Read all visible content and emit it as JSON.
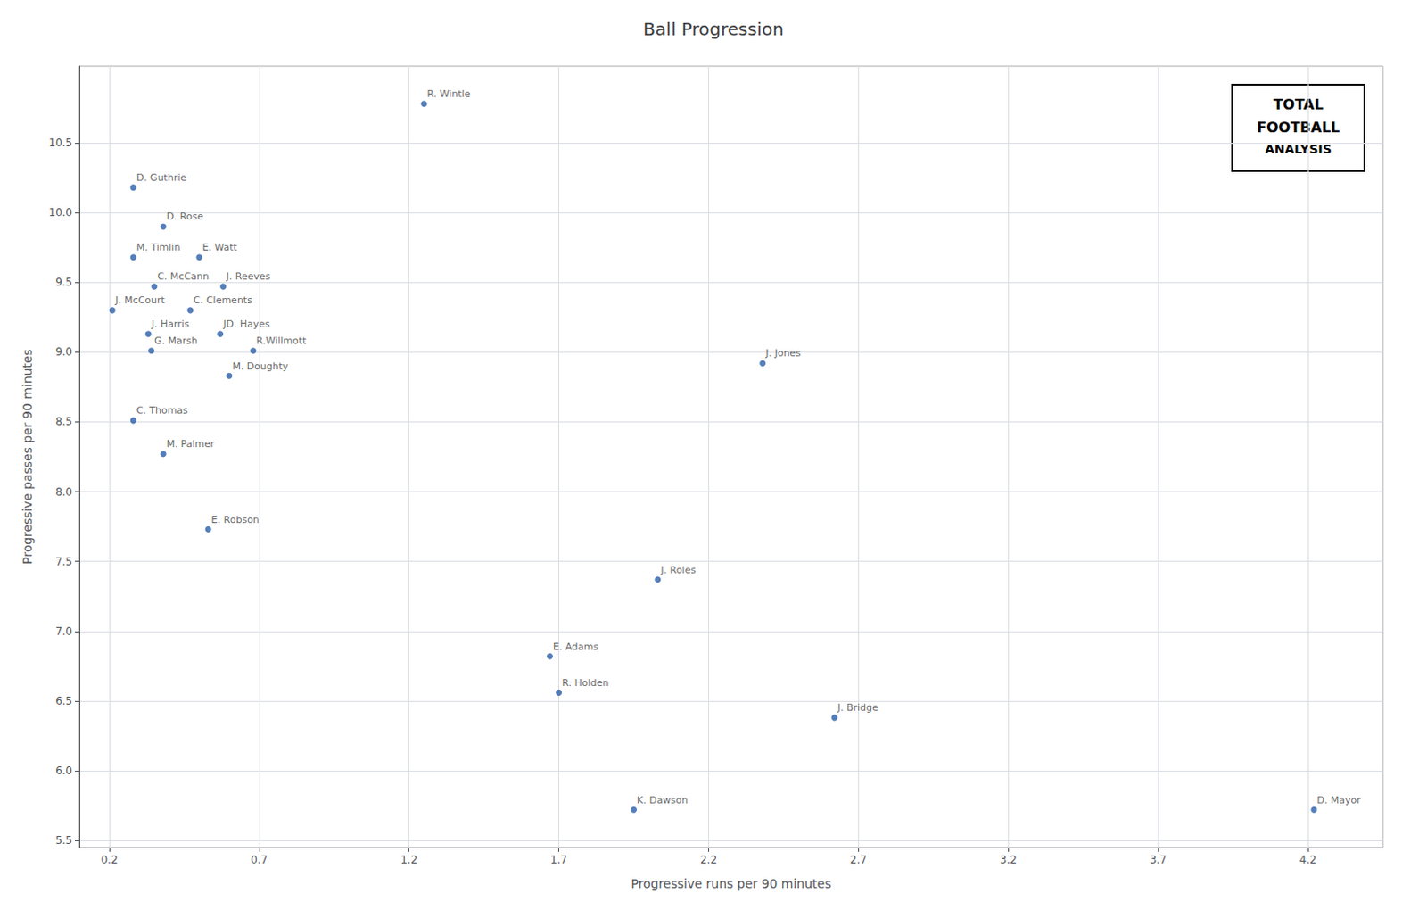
{
  "chart_data": {
    "type": "scatter",
    "title": "Ball Progression",
    "xlabel": "Progressive runs per 90 minutes",
    "ylabel": "Progressive passes per 90 minutes",
    "xlim": [
      0.1,
      4.45
    ],
    "ylim": [
      5.45,
      11.05
    ],
    "xticks": [
      0.2,
      0.7,
      1.2,
      1.7,
      2.2,
      2.7,
      3.2,
      3.7,
      4.2
    ],
    "yticks": [
      5.5,
      {
        "value": 6.0,
        "label": "6.0"
      },
      6.5,
      {
        "value": 7.0,
        "label": "7.0"
      },
      7.5,
      {
        "value": 8.0,
        "label": "8.0"
      },
      8.5,
      {
        "value": 9.0,
        "label": "9.0"
      },
      9.5,
      {
        "value": 10.0,
        "label": "10.0"
      },
      10.5
    ],
    "grid": true,
    "color": "#2b5ea7",
    "labels": [
      "R. Wintle",
      "D. Guthrie",
      "D. Rose",
      "M. Timlin",
      "E. Watt",
      "C. McCann",
      "J. Reeves",
      "J. McCourt",
      "C. Clements",
      "J. Harris",
      "JD. Hayes",
      "G. Marsh",
      "R.Willmott",
      "M. Doughty",
      "C. Thomas",
      "M. Palmer",
      "E. Robson",
      "J. Jones",
      "J. Roles",
      "E. Adams",
      "R. Holden",
      "J. Bridge",
      "K. Dawson",
      "D. Mayor"
    ],
    "x": [
      1.25,
      0.28,
      0.38,
      0.28,
      0.5,
      0.35,
      0.58,
      0.21,
      0.47,
      0.33,
      0.57,
      0.34,
      0.68,
      0.6,
      0.28,
      0.38,
      0.53,
      2.38,
      2.03,
      1.67,
      1.7,
      2.62,
      1.95,
      4.22
    ],
    "values": [
      10.78,
      10.18,
      9.9,
      9.68,
      9.68,
      9.47,
      9.47,
      9.3,
      9.3,
      9.13,
      9.13,
      9.01,
      9.01,
      8.83,
      8.51,
      8.27,
      7.73,
      8.92,
      7.37,
      6.82,
      6.56,
      6.38,
      5.72,
      5.72
    ],
    "annotations": [
      "TOTAL",
      "FOOTBALL",
      "ANALYSIS"
    ]
  }
}
